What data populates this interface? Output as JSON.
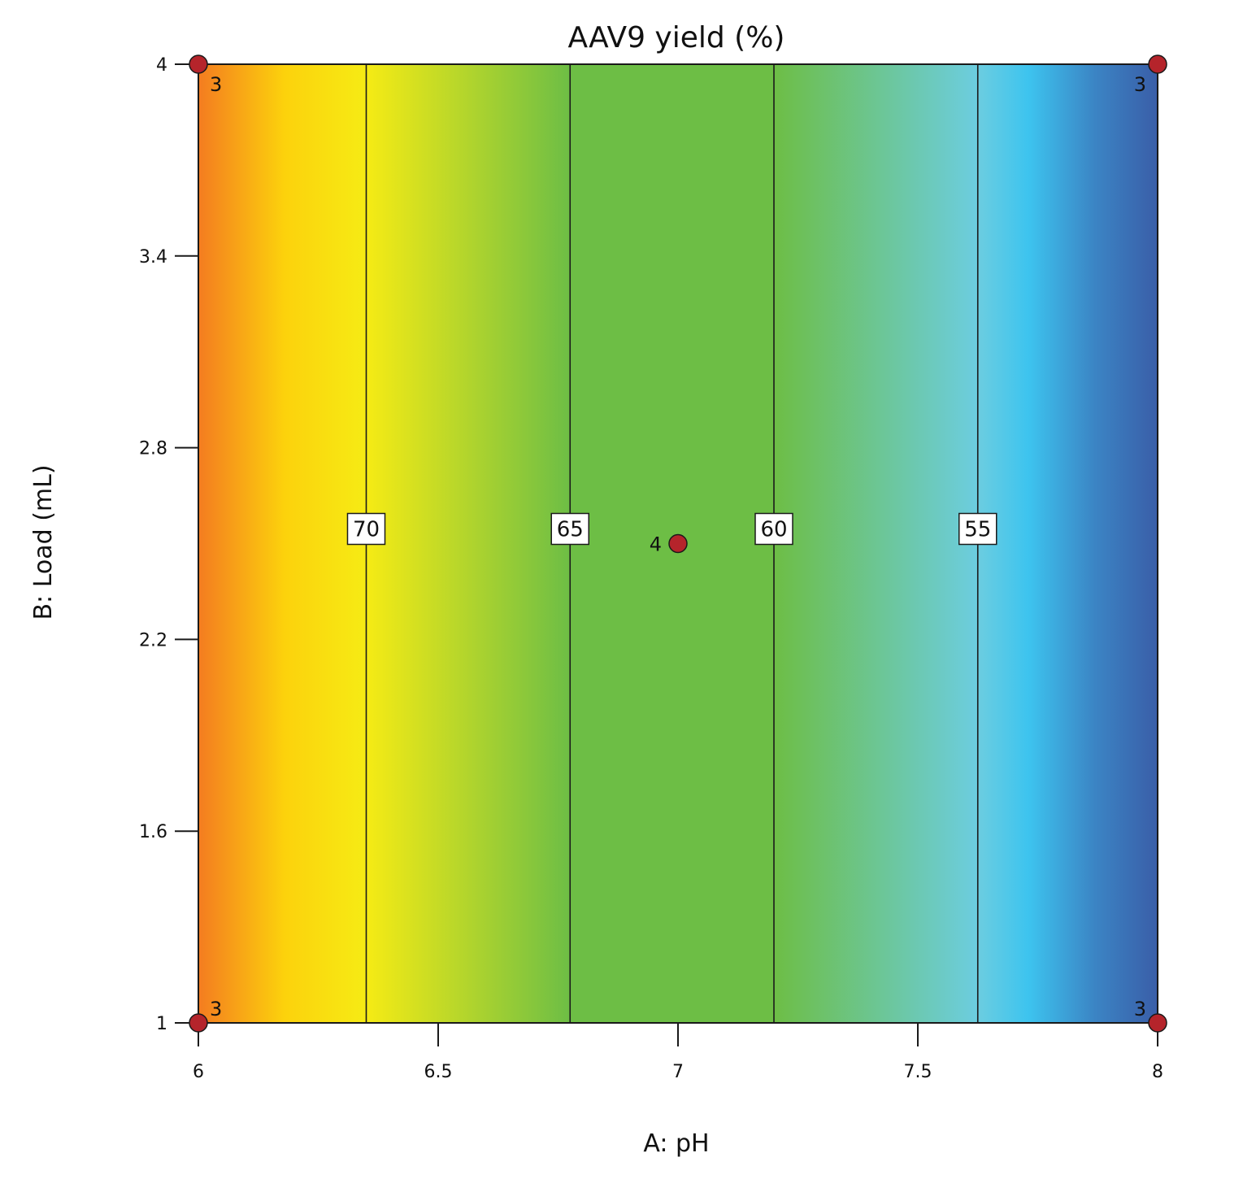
{
  "chart_data": {
    "type": "heatmap",
    "title": "AAV9 yield (%)",
    "xlabel": "A: pH",
    "ylabel": "B: Load (mL)",
    "xlim": [
      6,
      8
    ],
    "ylim": [
      1,
      4
    ],
    "x_ticks": [
      {
        "value": 6,
        "label": "6"
      },
      {
        "value": 6.5,
        "label": "6.5"
      },
      {
        "value": 7,
        "label": "7"
      },
      {
        "value": 7.5,
        "label": "7.5"
      },
      {
        "value": 8,
        "label": "8"
      }
    ],
    "y_ticks": [
      {
        "value": 1,
        "label": "1"
      },
      {
        "value": 1.6,
        "label": "1.6"
      },
      {
        "value": 2.2,
        "label": "2.2"
      },
      {
        "value": 2.8,
        "label": "2.8"
      },
      {
        "value": 3.4,
        "label": "3.4"
      },
      {
        "value": 4,
        "label": "4"
      }
    ],
    "contours": [
      {
        "level": 70,
        "label": "70",
        "x": 6.35
      },
      {
        "level": 65,
        "label": "65",
        "x": 6.775
      },
      {
        "level": 60,
        "label": "60",
        "x": 7.2
      },
      {
        "level": 55,
        "label": "55",
        "x": 7.625
      }
    ],
    "color_stops": [
      {
        "x": 6.0,
        "color": "#f47c20"
      },
      {
        "x": 6.18,
        "color": "#fcd20c"
      },
      {
        "x": 6.35,
        "color": "#f6eb14"
      },
      {
        "x": 6.775,
        "color": "#6dbe45"
      },
      {
        "x": 7.2,
        "color": "#6dbe45"
      },
      {
        "x": 7.625,
        "color": "#6ccde0"
      },
      {
        "x": 7.73,
        "color": "#3dc4ef"
      },
      {
        "x": 7.87,
        "color": "#3b84c4"
      },
      {
        "x": 8.0,
        "color": "#3a5ea8"
      }
    ],
    "design_points": [
      {
        "x": 6,
        "y": 4,
        "count": "3"
      },
      {
        "x": 8,
        "y": 4,
        "count": "3"
      },
      {
        "x": 6,
        "y": 1,
        "count": "3"
      },
      {
        "x": 8,
        "y": 1,
        "count": "3"
      },
      {
        "x": 7,
        "y": 2.5,
        "count": "4"
      }
    ],
    "point_color": "#b5242b",
    "grid": false,
    "legend": "none"
  }
}
